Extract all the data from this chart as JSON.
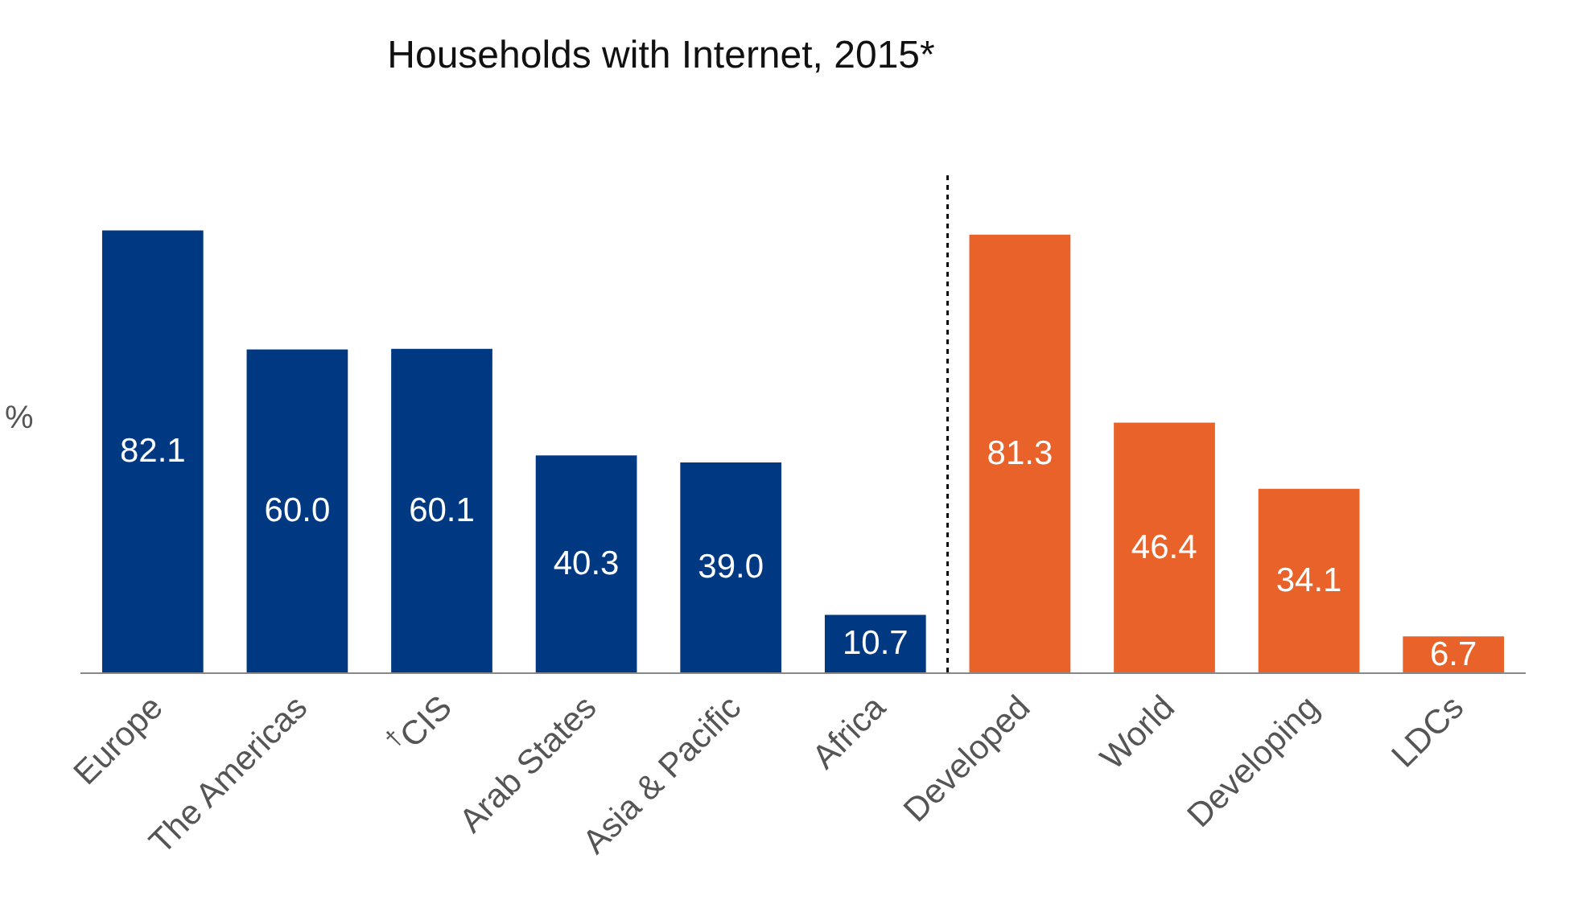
{
  "chart_data": {
    "type": "bar",
    "title": "Households with Internet, 2015*",
    "ylabel": "%",
    "categories": [
      "Europe",
      "The Americas",
      "$^{†}$CIS",
      "Arab States",
      "Asia & Pacific",
      "Africa",
      "Developed",
      "World",
      "Developing",
      "LDCs"
    ],
    "values": [
      82.1,
      60.0,
      60.1,
      40.3,
      39.0,
      10.7,
      81.3,
      46.4,
      34.1,
      6.7
    ],
    "value_labels": [
      "82.1",
      "60.0",
      "60.1",
      "40.3",
      "39.0",
      "10.7",
      "81.3",
      "46.4",
      "34.1",
      "6.7"
    ],
    "colors": [
      "#003882",
      "#003882",
      "#003882",
      "#003882",
      "#003882",
      "#003882",
      "#e8622a",
      "#e8622a",
      "#e8622a",
      "#e8622a"
    ],
    "legend": false
  }
}
